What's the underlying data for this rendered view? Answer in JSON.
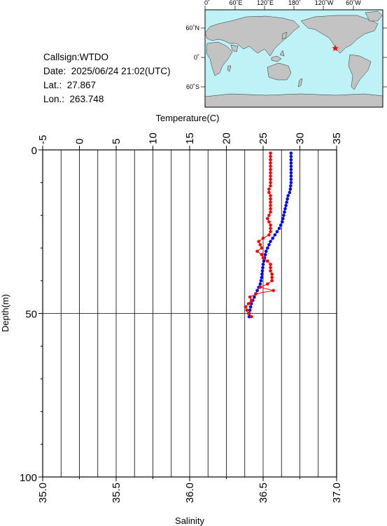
{
  "station": {
    "callsign": "Callsign:WTDO",
    "date": "Date:  2025/06/24 21:02(UTC)",
    "lat": "Lat.:  27.867",
    "lon": "Lon.:  263.748"
  },
  "map": {
    "lon_labels": [
      "0˚",
      "60˚E",
      "120˚E",
      "180˚",
      "120˚W",
      "60˚W"
    ],
    "lat_labels": [
      "60˚N",
      "0˚",
      "60˚S"
    ],
    "marker": {
      "lon": 263.748,
      "lat": 27.867
    },
    "colors": {
      "ocean": "#bff2f7",
      "land": "#c3c3c3",
      "marker": "#ff0000"
    }
  },
  "chart_data": {
    "type": "line",
    "ylabel": "Depth(m)",
    "ylim": [
      100,
      0
    ],
    "yticks": [
      "0",
      "50",
      "100"
    ],
    "top_axis": {
      "label": "Temperature(C)",
      "lim": [
        -5,
        35
      ],
      "ticks": [
        "-5",
        "0",
        "5",
        "10",
        "15",
        "20",
        "25",
        "30",
        "35"
      ]
    },
    "bottom_axis": {
      "label": "Salinity",
      "lim": [
        35.0,
        37.0
      ],
      "ticks": [
        "35.0",
        "35.5",
        "36.0",
        "36.5",
        "37.0"
      ]
    },
    "grid": true,
    "series": [
      {
        "color": "#0000ff",
        "axis": "top",
        "points": [
          [
            28.8,
            1
          ],
          [
            28.8,
            2
          ],
          [
            28.8,
            3
          ],
          [
            28.8,
            4
          ],
          [
            28.8,
            5
          ],
          [
            28.8,
            6
          ],
          [
            28.8,
            7
          ],
          [
            28.8,
            8
          ],
          [
            28.8,
            9
          ],
          [
            28.8,
            10
          ],
          [
            28.75,
            11
          ],
          [
            28.7,
            12
          ],
          [
            28.6,
            13
          ],
          [
            28.4,
            14
          ],
          [
            28.3,
            15
          ],
          [
            28.2,
            16
          ],
          [
            28.1,
            17
          ],
          [
            28.0,
            18
          ],
          [
            27.9,
            19
          ],
          [
            27.8,
            20
          ],
          [
            27.7,
            21
          ],
          [
            27.6,
            22
          ],
          [
            27.4,
            23
          ],
          [
            27.2,
            24
          ],
          [
            26.9,
            25
          ],
          [
            26.6,
            26
          ],
          [
            26.3,
            27
          ],
          [
            26.0,
            28
          ],
          [
            25.8,
            29
          ],
          [
            25.6,
            30
          ],
          [
            25.4,
            31
          ],
          [
            25.3,
            32
          ],
          [
            25.2,
            33
          ],
          [
            25.1,
            34
          ],
          [
            25.0,
            35
          ],
          [
            24.95,
            36
          ],
          [
            24.9,
            37
          ],
          [
            24.85,
            38
          ],
          [
            24.8,
            39
          ],
          [
            24.7,
            40
          ],
          [
            24.6,
            41
          ],
          [
            24.4,
            42
          ],
          [
            24.2,
            43
          ],
          [
            24.0,
            44
          ],
          [
            23.8,
            45
          ],
          [
            23.6,
            46
          ],
          [
            23.4,
            47
          ],
          [
            23.3,
            48
          ],
          [
            23.2,
            49
          ],
          [
            23.1,
            50
          ],
          [
            23.1,
            51
          ]
        ]
      },
      {
        "color": "#ff0000",
        "axis": "bottom",
        "points": [
          [
            36.55,
            1
          ],
          [
            36.55,
            2
          ],
          [
            36.55,
            3
          ],
          [
            36.55,
            4
          ],
          [
            36.55,
            5
          ],
          [
            36.55,
            6
          ],
          [
            36.55,
            7
          ],
          [
            36.55,
            8
          ],
          [
            36.55,
            9
          ],
          [
            36.55,
            10
          ],
          [
            36.55,
            11
          ],
          [
            36.54,
            12
          ],
          [
            36.54,
            13
          ],
          [
            36.55,
            14
          ],
          [
            36.55,
            15
          ],
          [
            36.55,
            16
          ],
          [
            36.55,
            17
          ],
          [
            36.55,
            18
          ],
          [
            36.55,
            19
          ],
          [
            36.54,
            20
          ],
          [
            36.53,
            21
          ],
          [
            36.54,
            22
          ],
          [
            36.55,
            23
          ],
          [
            36.55,
            24
          ],
          [
            36.55,
            25
          ],
          [
            36.54,
            26
          ],
          [
            36.5,
            27
          ],
          [
            36.47,
            28
          ],
          [
            36.48,
            29
          ],
          [
            36.49,
            30
          ],
          [
            36.46,
            31
          ],
          [
            36.49,
            32
          ],
          [
            36.5,
            33
          ],
          [
            36.53,
            34
          ],
          [
            36.55,
            35
          ],
          [
            36.55,
            36
          ],
          [
            36.55,
            37
          ],
          [
            36.56,
            38
          ],
          [
            36.56,
            39
          ],
          [
            36.56,
            40
          ],
          [
            36.53,
            41
          ],
          [
            36.48,
            42
          ],
          [
            36.57,
            43
          ],
          [
            36.45,
            44
          ],
          [
            36.41,
            45
          ],
          [
            36.42,
            46
          ],
          [
            36.4,
            47
          ],
          [
            36.38,
            48
          ],
          [
            36.39,
            49
          ],
          [
            36.4,
            50
          ],
          [
            36.42,
            51
          ]
        ]
      }
    ]
  }
}
